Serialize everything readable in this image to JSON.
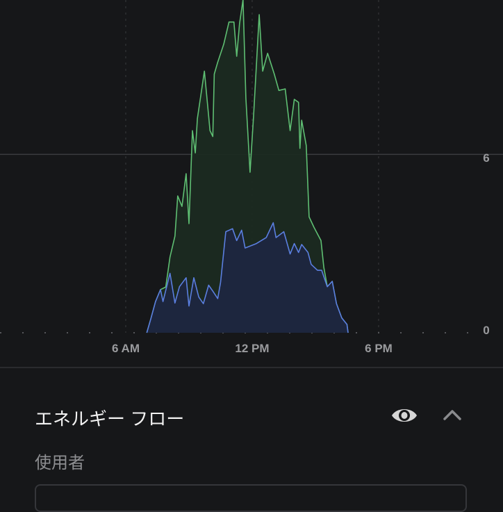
{
  "chart_data": {
    "type": "area",
    "x_ticks": [
      "6 AM",
      "12 PM",
      "6 PM"
    ],
    "y_ticks": [
      "0",
      "6"
    ],
    "xlim": [
      "00:00",
      "24:00"
    ],
    "ylim": [
      0,
      11.2
    ],
    "grid": true,
    "colors": {
      "green": "#5fbf73",
      "blue": "#5b7fe0",
      "green_fill": "#1b2a21",
      "blue_fill": "#1e2640"
    },
    "series": [
      {
        "color": "green",
        "points": [
          [
            "07:00",
            0
          ],
          [
            "07:11",
            0.45
          ],
          [
            "07:25",
            1.05
          ],
          [
            "07:39",
            1.45
          ],
          [
            "07:54",
            1.54
          ],
          [
            "08:06",
            2.55
          ],
          [
            "08:20",
            3.25
          ],
          [
            "08:28",
            4.6
          ],
          [
            "08:40",
            4.25
          ],
          [
            "08:52",
            5.35
          ],
          [
            "09:00",
            3.67
          ],
          [
            "09:10",
            6.8
          ],
          [
            "09:18",
            6.05
          ],
          [
            "09:24",
            7.2
          ],
          [
            "09:44",
            8.8
          ],
          [
            "10:00",
            6.8
          ],
          [
            "10:08",
            6.6
          ],
          [
            "10:12",
            8.7
          ],
          [
            "10:22",
            9.1
          ],
          [
            "10:39",
            9.7
          ],
          [
            "10:54",
            10.45
          ],
          [
            "11:08",
            10.45
          ],
          [
            "11:16",
            9.3
          ],
          [
            "11:24",
            10.4
          ],
          [
            "11:34",
            11.2
          ],
          [
            "11:42",
            7.9
          ],
          [
            "11:54",
            5.4
          ],
          [
            "12:04",
            7.3
          ],
          [
            "12:20",
            10.7
          ],
          [
            "12:30",
            8.8
          ],
          [
            "12:44",
            9.4
          ],
          [
            "13:03",
            8.7
          ],
          [
            "13:16",
            8.15
          ],
          [
            "13:34",
            8.2
          ],
          [
            "13:48",
            6.8
          ],
          [
            "14:00",
            7.85
          ],
          [
            "14:12",
            7.75
          ],
          [
            "14:16",
            6.2
          ],
          [
            "14:21",
            7.15
          ],
          [
            "14:34",
            6.3
          ],
          [
            "14:42",
            3.9
          ],
          [
            "14:56",
            3.55
          ],
          [
            "15:16",
            3.1
          ],
          [
            "15:24",
            2.2
          ],
          [
            "15:34",
            1.55
          ],
          [
            "15:48",
            1.73
          ],
          [
            "16:00",
            0.98
          ],
          [
            "16:15",
            0.5
          ],
          [
            "16:30",
            0.28
          ],
          [
            "16:33",
            0
          ]
        ]
      },
      {
        "color": "blue",
        "points": [
          [
            "07:00",
            0
          ],
          [
            "07:11",
            0.45
          ],
          [
            "07:25",
            1.05
          ],
          [
            "07:39",
            1.45
          ],
          [
            "07:46",
            1.05
          ],
          [
            "08:06",
            2.0
          ],
          [
            "08:20",
            1.0
          ],
          [
            "08:33",
            1.55
          ],
          [
            "08:52",
            1.85
          ],
          [
            "09:00",
            0.9
          ],
          [
            "09:14",
            1.85
          ],
          [
            "09:28",
            1.2
          ],
          [
            "09:41",
            0.98
          ],
          [
            "09:56",
            1.6
          ],
          [
            "10:08",
            1.4
          ],
          [
            "10:22",
            1.15
          ],
          [
            "10:30",
            1.7
          ],
          [
            "10:45",
            3.4
          ],
          [
            "11:04",
            3.5
          ],
          [
            "11:16",
            3.1
          ],
          [
            "11:30",
            3.45
          ],
          [
            "11:40",
            2.85
          ],
          [
            "12:12",
            3.0
          ],
          [
            "12:40",
            3.2
          ],
          [
            "13:00",
            3.7
          ],
          [
            "13:08",
            3.2
          ],
          [
            "13:30",
            3.4
          ],
          [
            "13:48",
            2.65
          ],
          [
            "14:00",
            3.0
          ],
          [
            "14:12",
            2.7
          ],
          [
            "14:21",
            2.97
          ],
          [
            "14:39",
            2.7
          ],
          [
            "14:48",
            2.3
          ],
          [
            "15:06",
            2.1
          ],
          [
            "15:18",
            2.1
          ],
          [
            "15:34",
            1.55
          ],
          [
            "15:48",
            1.73
          ],
          [
            "16:00",
            0.98
          ],
          [
            "16:15",
            0.5
          ],
          [
            "16:30",
            0.28
          ],
          [
            "16:33",
            0
          ]
        ]
      }
    ]
  },
  "section": {
    "title": "エネルギー フロー",
    "eye_icon": "eye-icon",
    "collapse_icon": "chevron-up-icon",
    "field_label": "使用者",
    "field_value": ""
  }
}
